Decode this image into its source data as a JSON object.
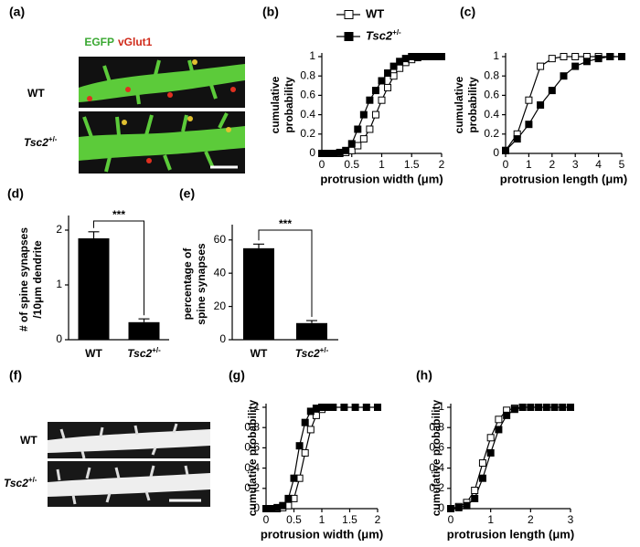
{
  "images": [
    {
      "panel_label": "(a)",
      "stain_labels": [
        "EGFP",
        "vGlut1"
      ],
      "row_labels": [
        "WT",
        "Tsc2+/-"
      ]
    },
    {
      "panel_label": "(f)",
      "row_labels": [
        "WT",
        "Tsc2+/-"
      ]
    }
  ],
  "chart_data": [
    {
      "type": "line",
      "panel_label": "(b)",
      "xlabel": "protrusion width (μm)",
      "ylabel": [
        "cumulative",
        "probability"
      ],
      "x": [
        0,
        0.1,
        0.2,
        0.3,
        0.4,
        0.5,
        0.6,
        0.7,
        0.8,
        0.9,
        1,
        1.1,
        1.2,
        1.3,
        1.4,
        1.5,
        1.6,
        1.7,
        1.8,
        1.9,
        2
      ],
      "xlim": [
        0,
        2
      ],
      "xticks": [
        0,
        0.5,
        1,
        1.5,
        2
      ],
      "ylim": [
        0,
        1
      ],
      "yticks": [
        0,
        0.2,
        0.4,
        0.6,
        0.8,
        1
      ],
      "legend": "top",
      "series": [
        {
          "name": "WT",
          "color": "#000000",
          "marker_fill": "#ffffff",
          "values": [
            0,
            0,
            0,
            0,
            0.01,
            0.03,
            0.08,
            0.15,
            0.25,
            0.4,
            0.55,
            0.68,
            0.8,
            0.88,
            0.94,
            0.97,
            0.99,
            1,
            1,
            1,
            1
          ]
        },
        {
          "name": "Tsc2+/-",
          "color": "#000000",
          "marker_fill": "#000000",
          "values": [
            0,
            0,
            0,
            0.01,
            0.03,
            0.1,
            0.25,
            0.4,
            0.55,
            0.65,
            0.75,
            0.83,
            0.9,
            0.95,
            0.98,
            1,
            1,
            1,
            1,
            1,
            1
          ]
        }
      ]
    },
    {
      "type": "line",
      "panel_label": "(c)",
      "xlabel": "protrusion length (μm)",
      "ylabel": [
        "cumulative",
        "probability"
      ],
      "x": [
        0,
        0.5,
        1,
        1.5,
        2,
        2.5,
        3,
        3.5,
        4,
        4.5,
        5
      ],
      "xlim": [
        0,
        5
      ],
      "xticks": [
        0,
        1,
        2,
        3,
        4,
        5
      ],
      "ylim": [
        0,
        1
      ],
      "yticks": [
        0,
        0.2,
        0.4,
        0.6,
        0.8,
        1
      ],
      "series": [
        {
          "color": "#000000",
          "marker_fill": "#ffffff",
          "values": [
            0.03,
            0.2,
            0.55,
            0.9,
            0.98,
            1,
            1,
            1,
            1,
            1,
            1
          ]
        },
        {
          "color": "#000000",
          "marker_fill": "#000000",
          "values": [
            0.03,
            0.15,
            0.3,
            0.5,
            0.65,
            0.8,
            0.9,
            0.95,
            0.98,
            1,
            1
          ]
        }
      ]
    },
    {
      "type": "bar",
      "panel_label": "(d)",
      "ylabel": [
        "# of spine synapses",
        "/10μm dendrite"
      ],
      "categories": [
        "WT",
        "Tsc2+/-"
      ],
      "values": [
        1.85,
        0.32
      ],
      "errors": [
        0.12,
        0.06
      ],
      "color": "#000000",
      "ylim": [
        0,
        2.2
      ],
      "yticks": [
        0,
        1,
        2
      ],
      "annotation": "***"
    },
    {
      "type": "bar",
      "panel_label": "(e)",
      "ylabel": [
        "percentage of",
        "spine synapses"
      ],
      "categories": [
        "WT",
        "Tsc2+/-"
      ],
      "values": [
        55,
        10
      ],
      "errors": [
        2.5,
        1.5
      ],
      "color": "#000000",
      "ylim": [
        0,
        67
      ],
      "yticks": [
        0,
        20,
        40,
        60
      ],
      "annotation": "***"
    },
    {
      "type": "line",
      "panel_label": "(g)",
      "xlabel": "protrusion width (μm)",
      "ylabel": [
        "cumulative probability"
      ],
      "x": [
        0,
        0.1,
        0.2,
        0.3,
        0.4,
        0.5,
        0.6,
        0.7,
        0.8,
        0.9,
        1,
        1.1,
        1.2,
        1.4,
        1.6,
        1.8,
        2
      ],
      "xlim": [
        0,
        2
      ],
      "xticks": [
        0,
        0.5,
        1,
        1.5,
        2
      ],
      "ylim": [
        0,
        1
      ],
      "yticks": [
        0,
        0.2,
        0.4,
        0.6,
        0.8,
        1
      ],
      "series": [
        {
          "color": "#000000",
          "marker_fill": "#ffffff",
          "values": [
            0,
            0,
            0,
            0.01,
            0.03,
            0.1,
            0.3,
            0.55,
            0.78,
            0.92,
            0.98,
            1,
            1,
            null,
            null,
            null,
            null
          ]
        },
        {
          "color": "#000000",
          "marker_fill": "#000000",
          "values": [
            0,
            0,
            0.01,
            0.03,
            0.1,
            0.3,
            0.62,
            0.85,
            0.96,
            0.99,
            1,
            1,
            1,
            1,
            1,
            1,
            1
          ]
        }
      ]
    },
    {
      "type": "line",
      "panel_label": "(h)",
      "xlabel": "protrusion length (μm)",
      "ylabel": [
        "cumulative probability"
      ],
      "x": [
        0,
        0.2,
        0.4,
        0.6,
        0.8,
        1,
        1.2,
        1.4,
        1.6,
        1.8,
        2,
        2.2,
        2.4,
        2.6,
        2.8,
        3
      ],
      "xlim": [
        0,
        3
      ],
      "xticks": [
        0,
        1,
        2,
        3
      ],
      "ylim": [
        0,
        1
      ],
      "yticks": [
        0,
        0.2,
        0.4,
        0.6,
        0.8,
        1
      ],
      "series": [
        {
          "color": "#000000",
          "marker_fill": "#ffffff",
          "values": [
            0,
            0.02,
            0.06,
            0.18,
            0.45,
            0.7,
            0.88,
            0.97,
            0.99,
            1,
            null,
            null,
            null,
            null,
            null,
            null
          ]
        },
        {
          "color": "#000000",
          "marker_fill": "#000000",
          "values": [
            0,
            0.01,
            0.03,
            0.1,
            0.3,
            0.55,
            0.78,
            0.92,
            0.98,
            1,
            1,
            1,
            1,
            1,
            1,
            1
          ]
        }
      ]
    }
  ]
}
